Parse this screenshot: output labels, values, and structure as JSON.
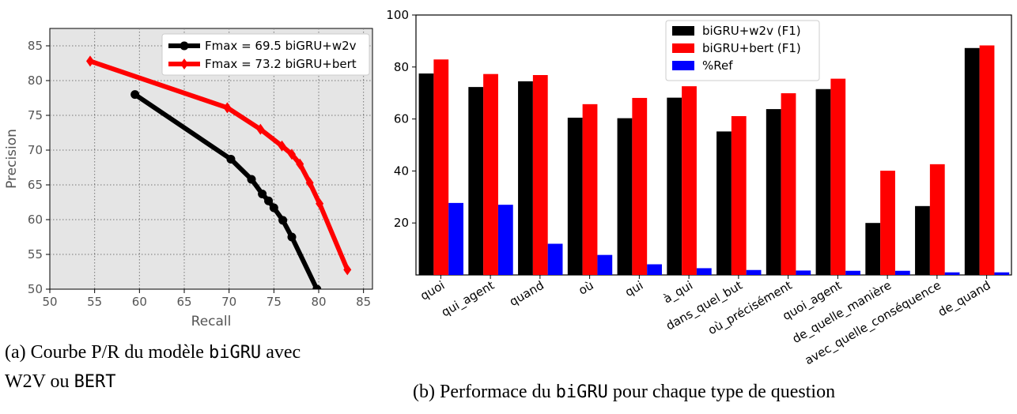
{
  "chart_data": [
    {
      "type": "line",
      "title": "",
      "xlabel": "Recall",
      "ylabel": "Precision",
      "xlim": [
        50,
        86
      ],
      "ylim": [
        50,
        87.5
      ],
      "xticks": [
        50,
        55,
        60,
        65,
        70,
        75,
        80,
        85
      ],
      "yticks": [
        50,
        55,
        60,
        65,
        70,
        75,
        80,
        85
      ],
      "grid": true,
      "legend_position": "top-right",
      "series": [
        {
          "name": "Fmax = 69.5  biGRU+w2v",
          "color": "#000000",
          "marker": "circle",
          "points": [
            [
              59.5,
              78.0
            ],
            [
              70.2,
              68.7
            ],
            [
              72.5,
              65.8
            ],
            [
              73.7,
              63.7
            ],
            [
              74.4,
              62.7
            ],
            [
              75.0,
              61.7
            ],
            [
              76.0,
              59.9
            ],
            [
              77.0,
              57.5
            ],
            [
              79.8,
              50.0
            ]
          ]
        },
        {
          "name": "Fmax = 73.2  biGRU+bert",
          "color": "#ff0000",
          "marker": "diamond",
          "points": [
            [
              54.5,
              82.8
            ],
            [
              69.8,
              76.1
            ],
            [
              73.5,
              73.0
            ],
            [
              75.9,
              70.6
            ],
            [
              77.0,
              69.4
            ],
            [
              77.9,
              68.0
            ],
            [
              79.0,
              65.3
            ],
            [
              80.1,
              62.3
            ],
            [
              83.2,
              52.8
            ]
          ]
        }
      ]
    },
    {
      "type": "bar",
      "title": "",
      "xlabel": "",
      "ylabel": "",
      "ylim": [
        0,
        100
      ],
      "yticks": [
        20,
        40,
        60,
        80,
        100
      ],
      "grid": false,
      "legend_position": "top-center",
      "categories": [
        "quoi",
        "qui_agent",
        "quand",
        "où",
        "qui",
        "à_qui",
        "dans_quel_but",
        "où_précisément",
        "quoi_agent",
        "de_quelle_manière",
        "avec_quelle_conséquence",
        "de_quand"
      ],
      "series": [
        {
          "name": "biGRU+w2v (F1)",
          "color": "#000000",
          "values": [
            77.5,
            72.3,
            74.5,
            60.5,
            60.3,
            68.2,
            55.2,
            63.8,
            71.5,
            20.0,
            26.5,
            87.3
          ]
        },
        {
          "name": "biGRU+bert (F1)",
          "color": "#ff0000",
          "values": [
            82.9,
            77.3,
            76.9,
            65.7,
            68.1,
            72.6,
            61.1,
            69.9,
            75.5,
            40.1,
            42.6,
            88.3
          ]
        },
        {
          "name": "%Ref",
          "color": "#0000ff",
          "values": [
            27.7,
            27.0,
            12.0,
            7.7,
            4.1,
            2.6,
            1.9,
            1.7,
            1.6,
            1.6,
            1.0,
            1.0
          ]
        }
      ]
    }
  ],
  "captions": {
    "a_prefix": "(a) Courbe P/R du modèle ",
    "a_mono1": "biGRU",
    "a_mid": " avec",
    "a_line2_prefix": "W2V ou ",
    "a_mono2": "BERT",
    "b_prefix": "(b) Performace du ",
    "b_mono": "biGRU",
    "b_suffix": " pour chaque type de question"
  }
}
